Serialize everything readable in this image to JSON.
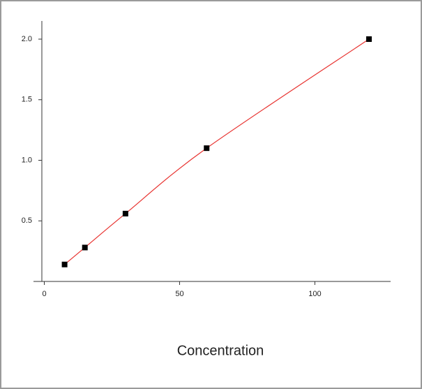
{
  "chart_data": {
    "type": "scatter",
    "x_label": "Concentration",
    "x": [
      7.5,
      15,
      30,
      60,
      120
    ],
    "series": [
      {
        "values": [
          0.14,
          0.28,
          0.56,
          1.1,
          2.0
        ],
        "color": "#000000",
        "line_color": "#e8322f"
      }
    ],
    "xlim": [
      -4,
      128
    ],
    "xticks": [
      0,
      50,
      100
    ],
    "ylim": [
      0,
      2.15
    ],
    "yticks": [
      {
        "value": 0.5,
        "label": "0.5"
      },
      {
        "value": 1.0,
        "label": "1.0"
      },
      {
        "value": 1.5,
        "label": "1.5"
      },
      {
        "value": 2.0,
        "label": "2.0"
      }
    ]
  }
}
